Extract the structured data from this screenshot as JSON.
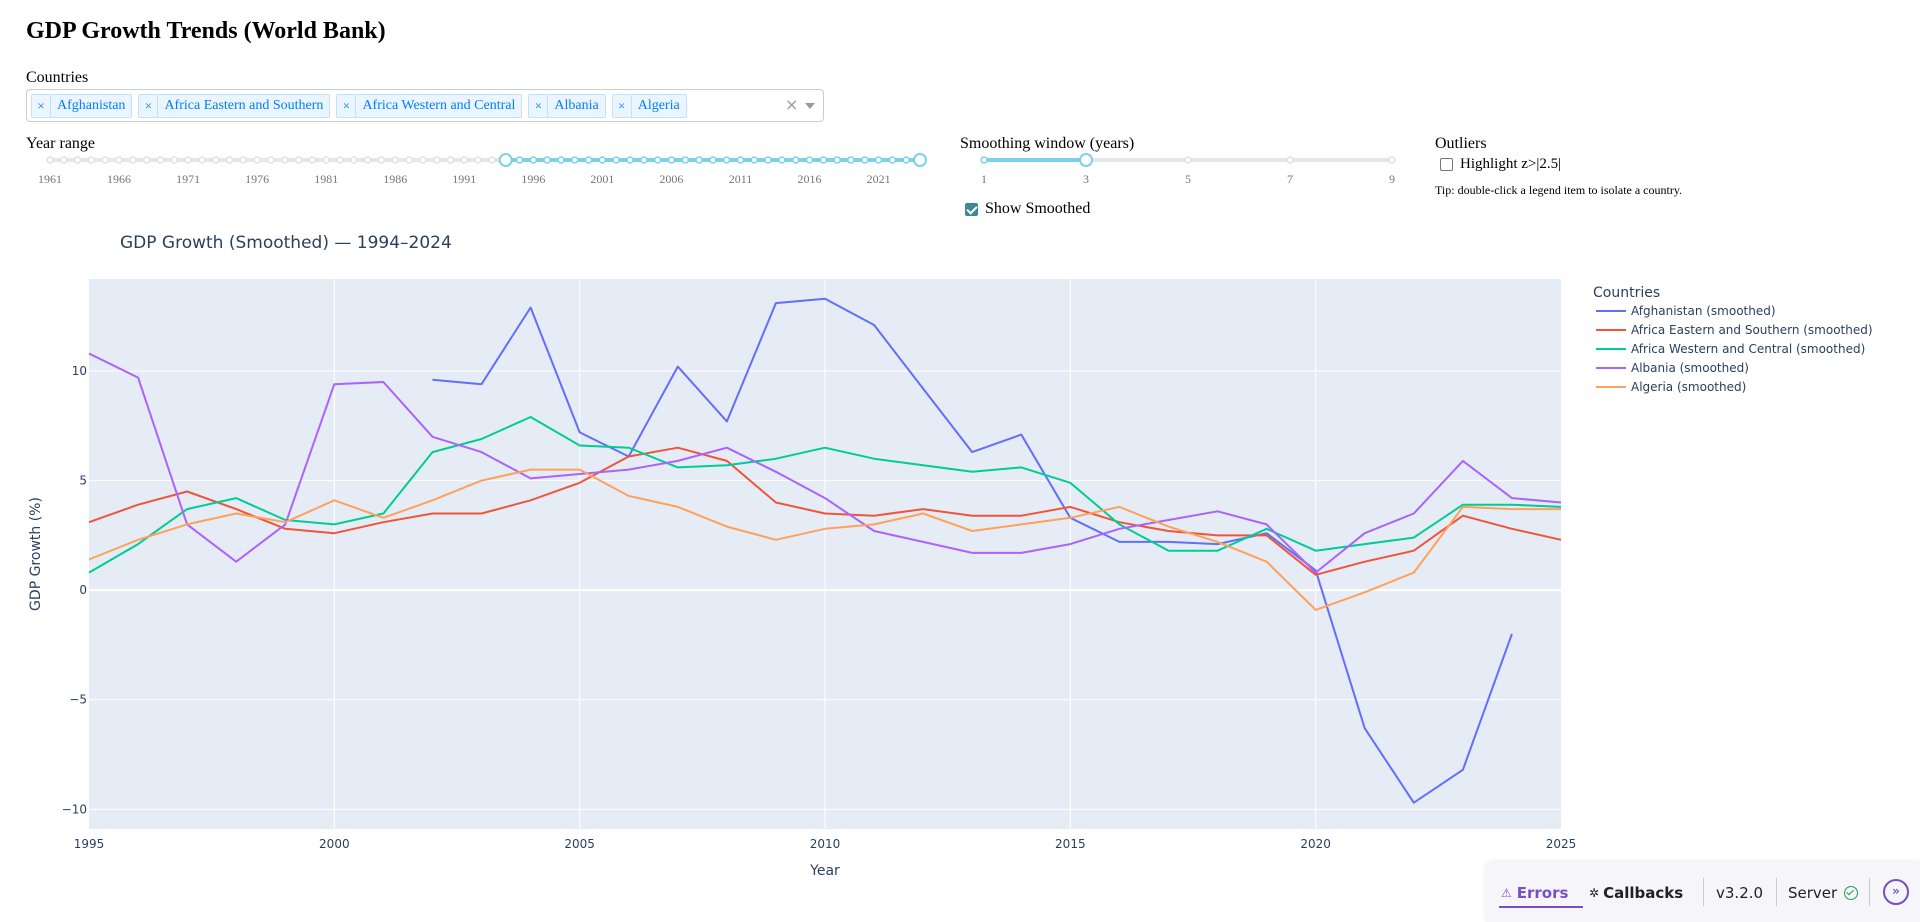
{
  "header": {
    "title": "GDP Growth Trends (World Bank)"
  },
  "countries": {
    "label": "Countries",
    "selected": [
      "Afghanistan",
      "Africa Eastern and Southern",
      "Africa Western and Central",
      "Albania",
      "Algeria"
    ],
    "remove_glyph": "×",
    "clear_glyph": "×"
  },
  "year_range": {
    "label": "Year range",
    "min": 1961,
    "max": 2024,
    "value": [
      1994,
      2024
    ],
    "marks": [
      "1961",
      "1966",
      "1971",
      "1976",
      "1981",
      "1986",
      "1991",
      "1996",
      "2001",
      "2006",
      "2011",
      "2016",
      "2021"
    ]
  },
  "smoothing": {
    "label": "Smoothing window (years)",
    "min": 1,
    "max": 9,
    "value": 3,
    "marks": [
      "1",
      "3",
      "5",
      "7",
      "9"
    ],
    "show_smoothed_label": "Show Smoothed",
    "show_smoothed": true
  },
  "outliers": {
    "label": "Outliers",
    "checkbox_label": "Highlight z>|2.5|",
    "checked": false,
    "tip": "Tip: double-click a legend item to isolate a country."
  },
  "colors": {
    "accent": "#79d2e8",
    "plot_bg": "#e5ecf6",
    "title": "#2a3f5f"
  },
  "chart_data": {
    "type": "line",
    "title": "GDP Growth (Smoothed) — 1994–2024",
    "xlabel": "Year",
    "ylabel": "GDP Growth (%)",
    "xlim": [
      1995,
      2025
    ],
    "ylim": [
      -10.9,
      14.2
    ],
    "xticks": [
      1995,
      2000,
      2005,
      2010,
      2015,
      2020,
      2025
    ],
    "yticks": [
      -10,
      -5,
      0,
      5,
      10
    ],
    "ytick_labels": [
      "−10",
      "−5",
      "0",
      "5",
      "10"
    ],
    "legend_title": "Countries",
    "legend_position": "right",
    "series": [
      {
        "name": "Afghanistan (smoothed)",
        "color": "#636efa",
        "x": [
          2002,
          2003,
          2004,
          2005,
          2006,
          2007,
          2008,
          2009,
          2010,
          2011,
          2012,
          2013,
          2014,
          2015,
          2016,
          2017,
          2018,
          2019,
          2020,
          2021,
          2022,
          2023,
          2024
        ],
        "y": [
          9.6,
          9.4,
          12.9,
          7.2,
          6.1,
          10.2,
          7.7,
          13.1,
          13.3,
          12.1,
          9.2,
          6.3,
          7.1,
          3.3,
          2.2,
          2.2,
          2.1,
          2.6,
          0.9,
          -6.3,
          -9.7,
          -8.2,
          -2.0
        ]
      },
      {
        "name": "Africa Eastern and Southern (smoothed)",
        "color": "#ef553b",
        "x": [
          1995,
          1996,
          1997,
          1998,
          1999,
          2000,
          2001,
          2002,
          2003,
          2004,
          2005,
          2006,
          2007,
          2008,
          2009,
          2010,
          2011,
          2012,
          2013,
          2014,
          2015,
          2016,
          2017,
          2018,
          2019,
          2020,
          2021,
          2022,
          2023,
          2024,
          2025
        ],
        "y": [
          3.1,
          3.9,
          4.5,
          3.7,
          2.8,
          2.6,
          3.1,
          3.5,
          3.5,
          4.1,
          4.9,
          6.1,
          6.5,
          5.9,
          4.0,
          3.5,
          3.4,
          3.7,
          3.4,
          3.4,
          3.8,
          3.1,
          2.7,
          2.5,
          2.5,
          0.7,
          1.3,
          1.8,
          3.4,
          2.8,
          2.3
        ]
      },
      {
        "name": "Africa Western and Central (smoothed)",
        "color": "#00cc96",
        "x": [
          1995,
          1996,
          1997,
          1998,
          1999,
          2000,
          2001,
          2002,
          2003,
          2004,
          2005,
          2006,
          2007,
          2008,
          2009,
          2010,
          2011,
          2012,
          2013,
          2014,
          2015,
          2016,
          2017,
          2018,
          2019,
          2020,
          2021,
          2022,
          2023,
          2024,
          2025
        ],
        "y": [
          0.8,
          2.1,
          3.7,
          4.2,
          3.2,
          3.0,
          3.5,
          6.3,
          6.9,
          7.9,
          6.6,
          6.5,
          5.6,
          5.7,
          6.0,
          6.5,
          6.0,
          5.7,
          5.4,
          5.6,
          4.9,
          3.0,
          1.8,
          1.8,
          2.8,
          1.8,
          2.1,
          2.4,
          3.9,
          3.9,
          3.8
        ]
      },
      {
        "name": "Albania (smoothed)",
        "color": "#ab63fa",
        "x": [
          1995,
          1996,
          1997,
          1998,
          1999,
          2000,
          2001,
          2002,
          2003,
          2004,
          2005,
          2006,
          2007,
          2008,
          2009,
          2010,
          2011,
          2012,
          2013,
          2014,
          2015,
          2016,
          2017,
          2018,
          2019,
          2020,
          2021,
          2022,
          2023,
          2024,
          2025
        ],
        "y": [
          10.8,
          9.7,
          3.0,
          1.3,
          3.0,
          9.4,
          9.5,
          7.0,
          6.3,
          5.1,
          5.3,
          5.5,
          5.9,
          6.5,
          5.4,
          4.2,
          2.7,
          2.2,
          1.7,
          1.7,
          2.1,
          2.8,
          3.2,
          3.6,
          3.0,
          0.8,
          2.6,
          3.5,
          5.9,
          4.2,
          4.0
        ]
      },
      {
        "name": "Algeria (smoothed)",
        "color": "#ffa15a",
        "x": [
          1995,
          1996,
          1997,
          1998,
          1999,
          2000,
          2001,
          2002,
          2003,
          2004,
          2005,
          2006,
          2007,
          2008,
          2009,
          2010,
          2011,
          2012,
          2013,
          2014,
          2015,
          2016,
          2017,
          2018,
          2019,
          2020,
          2021,
          2022,
          2023,
          2024,
          2025
        ],
        "y": [
          1.4,
          2.3,
          3.0,
          3.5,
          3.1,
          4.1,
          3.3,
          4.1,
          5.0,
          5.5,
          5.5,
          4.3,
          3.8,
          2.9,
          2.3,
          2.8,
          3.0,
          3.5,
          2.7,
          3.0,
          3.3,
          3.8,
          2.9,
          2.2,
          1.3,
          -0.9,
          -0.1,
          0.8,
          3.8,
          3.7,
          3.7
        ]
      }
    ]
  },
  "devtools": {
    "errors_label": "Errors",
    "callbacks_label": "Callbacks",
    "version": "v3.2.0",
    "server_label": "Server"
  }
}
